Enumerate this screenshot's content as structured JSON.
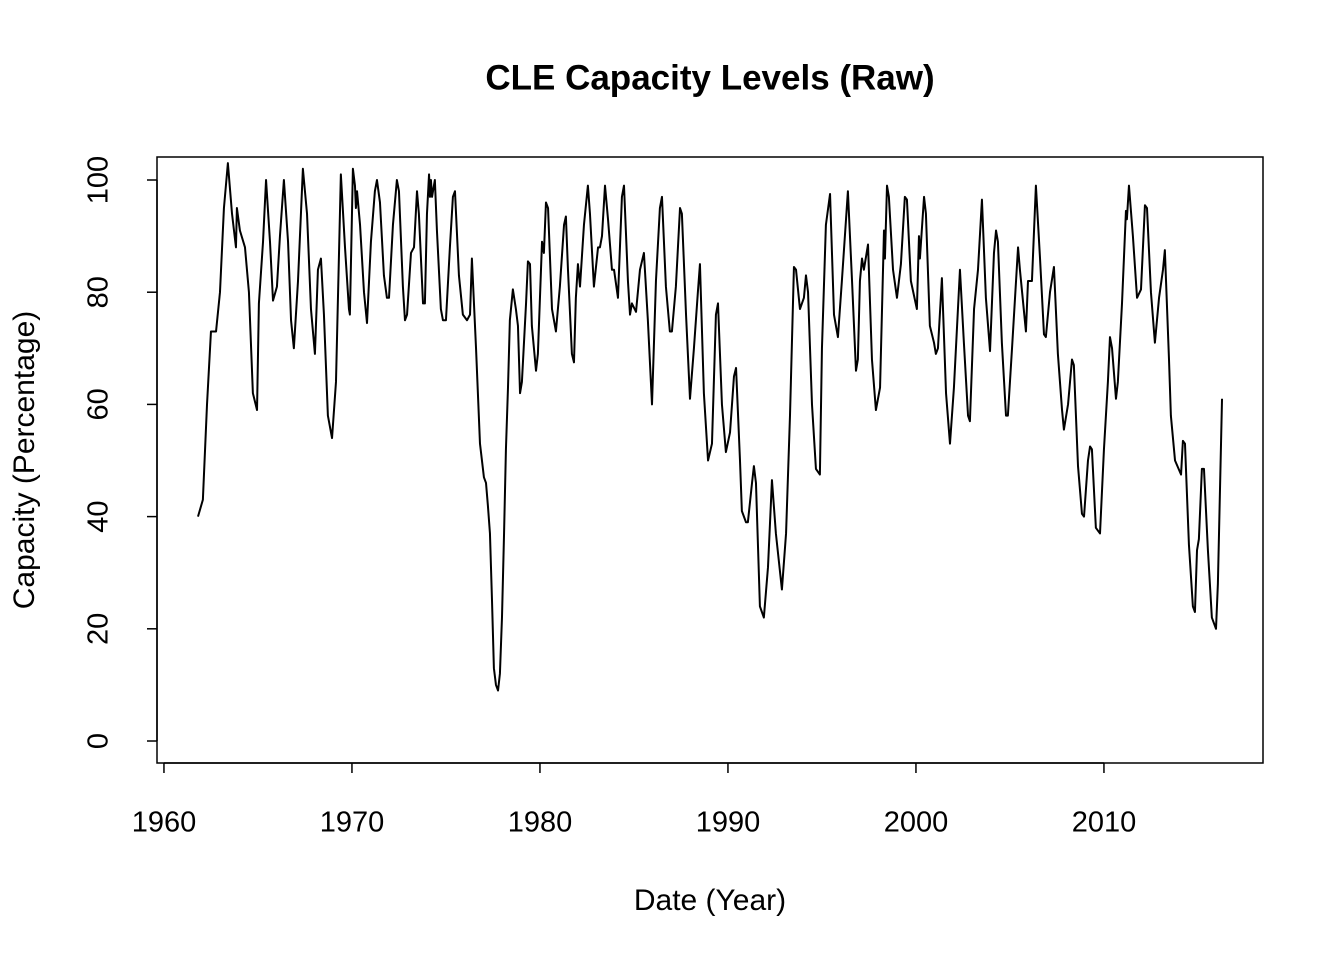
{
  "chart_data": {
    "type": "line",
    "title": "CLE Capacity Levels (Raw)",
    "x_label": "Date (Year)",
    "y_label": "Capacity (Percentage)",
    "xlim": [
      1959.63,
      2018.46
    ],
    "ylim": [
      -3.92,
      104.1
    ],
    "xticks": [
      1960,
      1970,
      1980,
      1990,
      2000,
      2010
    ],
    "yticks": [
      0,
      20,
      40,
      60,
      80,
      100
    ],
    "grid": false,
    "series": [
      {
        "color": "#000000",
        "x": [
          1961.81,
          1962.07,
          1962.29,
          1962.5,
          1962.77,
          1962.98,
          1963.19,
          1963.4,
          1963.62,
          1963.83,
          1963.88,
          1964.04,
          1964.31,
          1964.52,
          1964.73,
          1964.95,
          1965.05,
          1965.27,
          1965.43,
          1965.64,
          1965.8,
          1966.01,
          1966.17,
          1966.38,
          1966.6,
          1966.76,
          1966.91,
          1967.13,
          1967.39,
          1967.61,
          1967.82,
          1968.03,
          1968.19,
          1968.35,
          1968.51,
          1968.72,
          1968.94,
          1969.15,
          1969.41,
          1969.63,
          1969.84,
          1969.89,
          1970.05,
          1970.16,
          1970.21,
          1970.27,
          1970.43,
          1970.64,
          1970.8,
          1971.01,
          1971.22,
          1971.33,
          1971.49,
          1971.7,
          1971.86,
          1971.97,
          1972.18,
          1972.39,
          1972.5,
          1972.71,
          1972.82,
          1972.93,
          1973.14,
          1973.3,
          1973.46,
          1973.56,
          1973.78,
          1973.88,
          1973.99,
          1974.1,
          1974.15,
          1974.2,
          1974.26,
          1974.41,
          1974.52,
          1974.73,
          1974.84,
          1975.0,
          1975.21,
          1975.37,
          1975.48,
          1975.69,
          1975.9,
          1976.12,
          1976.28,
          1976.38,
          1976.6,
          1976.81,
          1977.02,
          1977.13,
          1977.23,
          1977.34,
          1977.45,
          1977.55,
          1977.66,
          1977.77,
          1977.87,
          1977.98,
          1978.09,
          1978.19,
          1978.3,
          1978.4,
          1978.56,
          1978.72,
          1978.83,
          1978.94,
          1979.04,
          1979.26,
          1979.36,
          1979.47,
          1979.57,
          1979.79,
          1979.89,
          1980.11,
          1980.21,
          1980.32,
          1980.43,
          1980.64,
          1980.85,
          1981.06,
          1981.28,
          1981.38,
          1981.49,
          1981.7,
          1981.81,
          1981.91,
          1982.02,
          1982.13,
          1982.34,
          1982.55,
          1982.66,
          1982.87,
          1983.09,
          1983.19,
          1983.3,
          1983.46,
          1983.62,
          1983.83,
          1983.94,
          1984.15,
          1984.36,
          1984.47,
          1984.68,
          1984.79,
          1984.89,
          1985.11,
          1985.32,
          1985.53,
          1985.74,
          1985.96,
          1986.17,
          1986.38,
          1986.49,
          1986.7,
          1986.91,
          1987.02,
          1987.23,
          1987.45,
          1987.55,
          1987.77,
          1987.98,
          1988.19,
          1988.4,
          1988.51,
          1988.72,
          1988.94,
          1989.15,
          1989.36,
          1989.47,
          1989.68,
          1989.89,
          1990.11,
          1990.32,
          1990.43,
          1990.64,
          1990.74,
          1990.96,
          1991.06,
          1991.28,
          1991.38,
          1991.49,
          1991.7,
          1991.91,
          1992.13,
          1992.34,
          1992.55,
          1992.87,
          1993.09,
          1993.3,
          1993.51,
          1993.62,
          1993.83,
          1994.04,
          1994.15,
          1994.26,
          1994.47,
          1994.68,
          1994.89,
          1995.0,
          1995.21,
          1995.43,
          1995.64,
          1995.85,
          1996.06,
          1996.28,
          1996.38,
          1996.6,
          1996.81,
          1996.91,
          1997.02,
          1997.13,
          1997.23,
          1997.45,
          1997.66,
          1997.87,
          1998.09,
          1998.3,
          1998.35,
          1998.46,
          1998.56,
          1998.78,
          1998.99,
          1999.2,
          1999.41,
          1999.52,
          1999.73,
          2000.05,
          2000.16,
          2000.21,
          2000.43,
          2000.53,
          2000.74,
          2000.96,
          2001.06,
          2001.17,
          2001.38,
          2001.6,
          2001.81,
          2002.02,
          2002.34,
          2002.55,
          2002.77,
          2002.87,
          2003.09,
          2003.3,
          2003.51,
          2003.72,
          2003.94,
          2004.15,
          2004.26,
          2004.36,
          2004.57,
          2004.79,
          2004.89,
          2005.11,
          2005.43,
          2005.53,
          2005.85,
          2005.96,
          2006.17,
          2006.38,
          2006.6,
          2006.81,
          2006.91,
          2007.13,
          2007.34,
          2007.55,
          2007.77,
          2007.87,
          2008.09,
          2008.3,
          2008.4,
          2008.62,
          2008.83,
          2008.94,
          2009.15,
          2009.26,
          2009.36,
          2009.57,
          2009.79,
          2010.0,
          2010.21,
          2010.32,
          2010.43,
          2010.64,
          2010.74,
          2010.96,
          2011.17,
          2011.22,
          2011.33,
          2011.54,
          2011.76,
          2011.97,
          2012.18,
          2012.29,
          2012.5,
          2012.71,
          2012.93,
          2013.14,
          2013.24,
          2013.46,
          2013.56,
          2013.78,
          2014.1,
          2014.2,
          2014.31,
          2014.52,
          2014.73,
          2014.84,
          2014.95,
          2015.05,
          2015.21,
          2015.32,
          2015.53,
          2015.74,
          2015.96,
          2016.06,
          2016.28
        ],
        "values": [
          40,
          43,
          60,
          73,
          73,
          80,
          95,
          103,
          94,
          88,
          95,
          91,
          88,
          80,
          62,
          59,
          78,
          89,
          100,
          89,
          78.5,
          81,
          90,
          100,
          89,
          75,
          70,
          82,
          102,
          94,
          77,
          69,
          84,
          86,
          76,
          58,
          54,
          64,
          101,
          88,
          77,
          76,
          102,
          99,
          95,
          98,
          92,
          80,
          74.5,
          89,
          98,
          100,
          96,
          83,
          79,
          79,
          92,
          100,
          98,
          81,
          75,
          76,
          87,
          88,
          98,
          94,
          78,
          78,
          94,
          101,
          97,
          100,
          97,
          100,
          91,
          77,
          75,
          75,
          88,
          97,
          98,
          83,
          76,
          75,
          76,
          86,
          70,
          53,
          47,
          46,
          42,
          37,
          25,
          13,
          10,
          9,
          12,
          22,
          37,
          52,
          63,
          75,
          80.5,
          77,
          74,
          62,
          64,
          78,
          85.5,
          85,
          74,
          66,
          69,
          89,
          87,
          96,
          95,
          77,
          73,
          81,
          92,
          93.5,
          84,
          69,
          67.5,
          79,
          85,
          81,
          92,
          99,
          94,
          81,
          88,
          88,
          90,
          99,
          93,
          84,
          84,
          79,
          97,
          99,
          82,
          76,
          78,
          76.5,
          84,
          87,
          75,
          60,
          82,
          95,
          97,
          81,
          73,
          73,
          81,
          95,
          94,
          76,
          61,
          70,
          80,
          85,
          62,
          50,
          53,
          76,
          78,
          60,
          51.5,
          55,
          65,
          66.5,
          50,
          41,
          39,
          39,
          46,
          49,
          46,
          24,
          22,
          31,
          46.5,
          37,
          27,
          37,
          58,
          84.5,
          84,
          77,
          79,
          83,
          80,
          60,
          48.5,
          47.5,
          70,
          92,
          97.5,
          76,
          72,
          82,
          93,
          98,
          82,
          66,
          68,
          82,
          86,
          84,
          88.5,
          68,
          59,
          63,
          91,
          86,
          99,
          97,
          84,
          79,
          85,
          97,
          96.5,
          82,
          77,
          90,
          86,
          97,
          94,
          74,
          71,
          69,
          70,
          82.5,
          62,
          53,
          63,
          84,
          71,
          58,
          57,
          77,
          84,
          96.5,
          79,
          69.5,
          87,
          91,
          89,
          71,
          58,
          58,
          70,
          88,
          84,
          73,
          82,
          82,
          99,
          86,
          72.5,
          72,
          80,
          84.5,
          69,
          59,
          55.5,
          60,
          68,
          67,
          49,
          40.5,
          40,
          50,
          52.5,
          52,
          38,
          37,
          52,
          64,
          72,
          70,
          61,
          64,
          78,
          94.5,
          93,
          99,
          90,
          79,
          80.5,
          95.5,
          95,
          80,
          71,
          79,
          84,
          87.5,
          68,
          58,
          50,
          47.5,
          53.5,
          53,
          35,
          24,
          23,
          34,
          36,
          48.5,
          48.5,
          34,
          22,
          20,
          28,
          61
        ]
      }
    ]
  }
}
